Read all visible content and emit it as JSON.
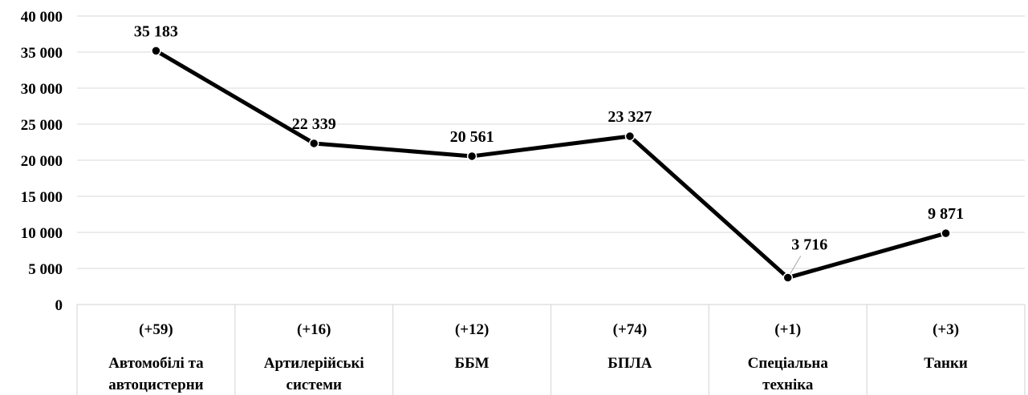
{
  "chart_data": {
    "type": "line",
    "title": "",
    "xlabel": "",
    "ylabel": "",
    "ylim": [
      0,
      40000
    ],
    "yticks": [
      "0",
      "5 000",
      "10 000",
      "15 000",
      "20 000",
      "25 000",
      "30 000",
      "35 000",
      "40 000"
    ],
    "grid": true,
    "categories": [
      {
        "delta": "(+59)",
        "name": [
          "Автомобілі та",
          "автоцистерни"
        ]
      },
      {
        "delta": "(+16)",
        "name": [
          "Артилерійські",
          "системи"
        ]
      },
      {
        "delta": "(+12)",
        "name": [
          "ББМ"
        ]
      },
      {
        "delta": "(+74)",
        "name": [
          "БПЛА"
        ]
      },
      {
        "delta": "(+1)",
        "name": [
          "Спеціальна",
          "техніка"
        ]
      },
      {
        "delta": "(+3)",
        "name": [
          "Танки"
        ]
      }
    ],
    "values": [
      35183,
      22339,
      20561,
      23327,
      3716,
      9871
    ],
    "data_labels": [
      "35 183",
      "22 339",
      "20 561",
      "23 327",
      "3 716",
      "9 871"
    ],
    "colors": {
      "line": "#000000",
      "grid": "#d9d9d9",
      "marker_stroke": "#ffffff"
    }
  }
}
